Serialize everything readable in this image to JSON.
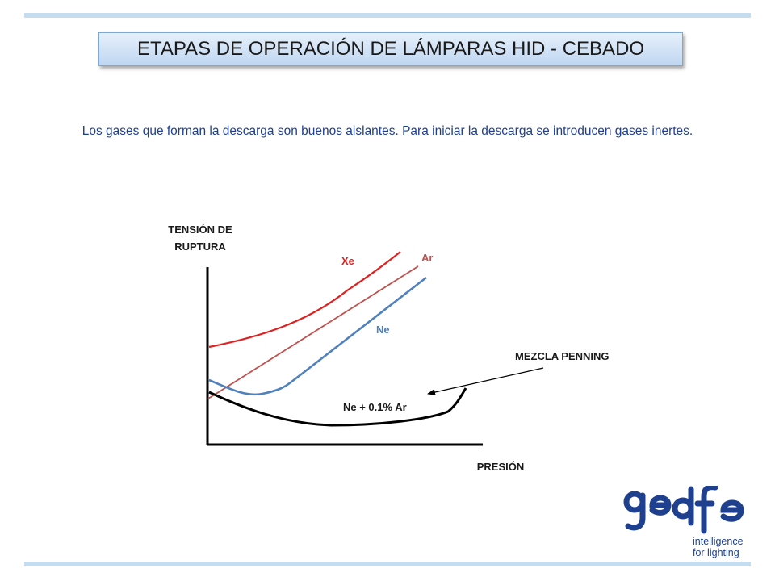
{
  "title": "ETAPAS DE OPERACIÓN DE LÁMPARAS HID - CEBADO",
  "subtitle": "Los gases que forman la descarga son buenos aislantes. Para iniciar la descarga se introducen gases inertes.",
  "figure": {
    "y_axis_label_line1": "TENSIÓN DE",
    "y_axis_label_line2": "RUPTURA",
    "x_axis_label": "PRESIÓN",
    "curves": [
      {
        "name": "Xe",
        "color": "#e02020"
      },
      {
        "name": "Ar",
        "color": "#c0504d"
      },
      {
        "name": "Ne",
        "color": "#4f81bd"
      },
      {
        "name": "Ne + 0.1% Ar",
        "color": "#000000"
      }
    ],
    "annotation": "MEZCLA PENNING",
    "colors": {
      "axis": "#000000",
      "label": "#1a1a1a"
    }
  },
  "logo": {
    "brand": "gedfe",
    "tagline_line1": "intelligence",
    "tagline_line2": "for lighting",
    "color": "#1f3f8f"
  }
}
